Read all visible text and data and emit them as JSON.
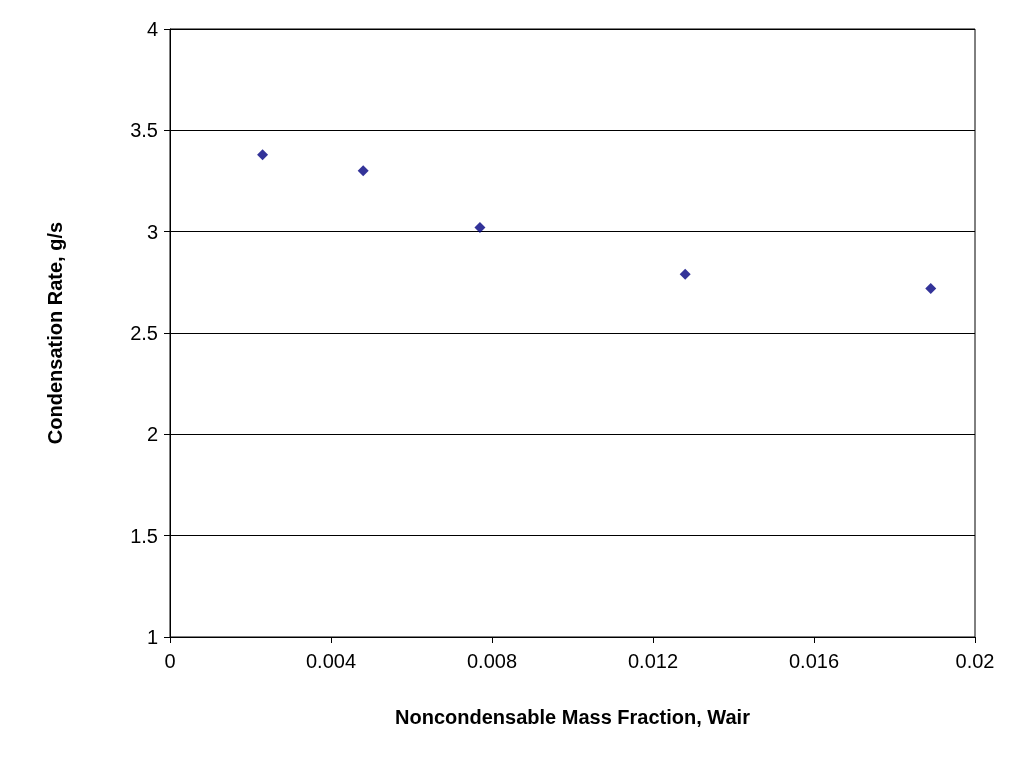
{
  "chart_data": {
    "type": "scatter",
    "xlabel": "Noncondensable Mass Fraction, Wair",
    "ylabel": "Condensation Rate, g/s",
    "x": [
      0.0023,
      0.0048,
      0.0077,
      0.0128,
      0.0189
    ],
    "series": [
      {
        "color": "#000080",
        "values": [
          3.38,
          3.3,
          3.02,
          2.79,
          2.72
        ]
      }
    ],
    "xlim": [
      0,
      0.02
    ],
    "xticks": [
      0,
      0.004,
      0.008,
      0.012,
      0.016,
      0.02
    ],
    "ylim": [
      1,
      4
    ],
    "yticks": [
      1,
      1.5,
      2,
      2.5,
      3,
      3.5,
      4
    ],
    "grid": "y",
    "marker": "diamond"
  }
}
